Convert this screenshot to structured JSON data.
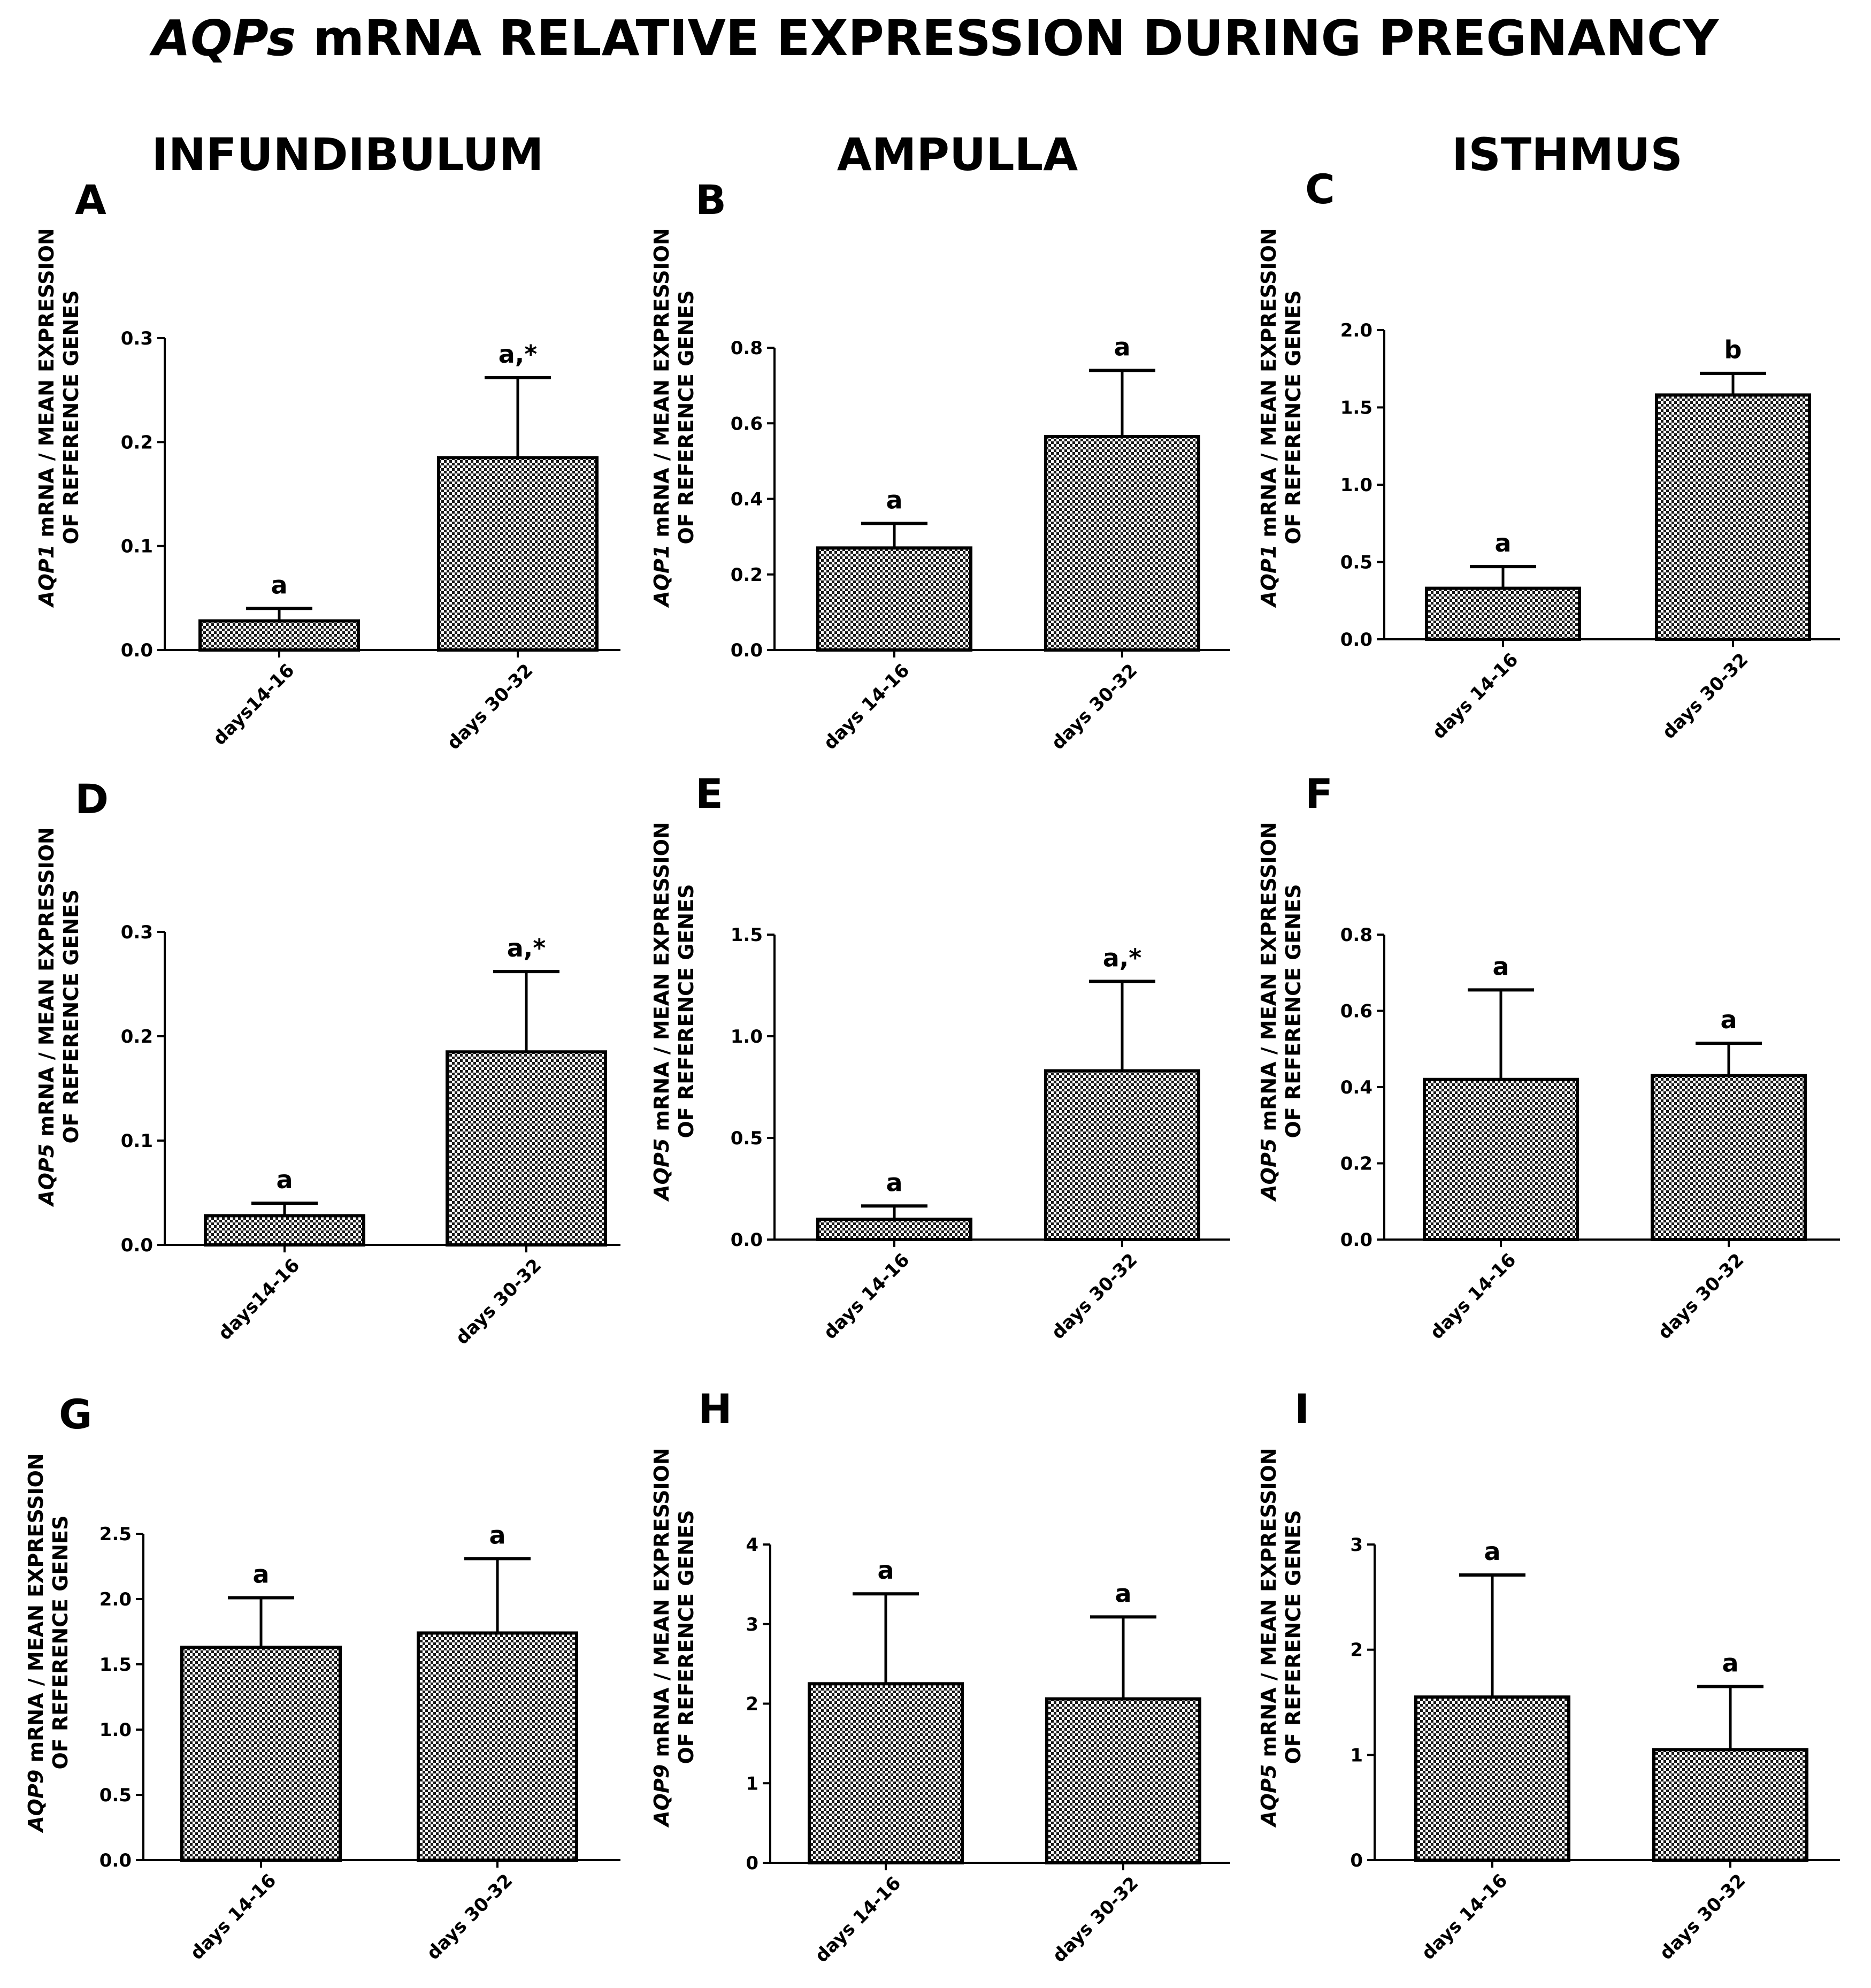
{
  "title": {
    "prefix": "AQPs",
    "rest": " mRNA RELATIVE EXPRESSION DURING PREGNANCY"
  },
  "columns": [
    "INFUNDIBULUM",
    "AMPULLA",
    "ISTHMUS"
  ],
  "colors": {
    "bar_fill": "#8a8a8a",
    "axis": "#000000"
  },
  "chart_data": [
    {
      "panel": "A",
      "type": "bar",
      "gene": "AQP1",
      "ylabel_rest": " mRNA / MEAN EXPRESSION",
      "ylabel_line2": "OF REFERENCE GENES",
      "categories": [
        "days14-16",
        "days 30-32"
      ],
      "values": [
        0.028,
        0.185
      ],
      "errors": [
        0.012,
        0.077
      ],
      "labels": [
        "a",
        "a,*"
      ],
      "ylim": [
        0,
        0.3
      ],
      "yticks": [
        "0.0",
        "0.1",
        "0.2",
        "0.3"
      ]
    },
    {
      "panel": "B",
      "type": "bar",
      "gene": "AQP1",
      "ylabel_rest": " mRNA / MEAN EXPRESSION",
      "ylabel_line2": "OF REFERENCE GENES",
      "categories": [
        "days 14-16",
        "days 30-32"
      ],
      "values": [
        0.27,
        0.565
      ],
      "errors": [
        0.065,
        0.175
      ],
      "labels": [
        "a",
        "a"
      ],
      "ylim": [
        0,
        0.8
      ],
      "yticks": [
        "0.0",
        "0.2",
        "0.4",
        "0.6",
        "0.8"
      ]
    },
    {
      "panel": "C",
      "type": "bar",
      "gene": "AQP1",
      "ylabel_rest": " mRNA / MEAN EXPRESSION",
      "ylabel_line2": "OF REFERENCE GENES",
      "categories": [
        "days 14-16",
        "days 30-32"
      ],
      "values": [
        0.33,
        1.58
      ],
      "errors": [
        0.14,
        0.14
      ],
      "labels": [
        "a",
        "b"
      ],
      "ylim": [
        0,
        2.0
      ],
      "yticks": [
        "0.0",
        "0.5",
        "1.0",
        "1.5",
        "2.0"
      ]
    },
    {
      "panel": "D",
      "type": "bar",
      "gene": "AQP5",
      "ylabel_rest": " mRNA / MEAN EXPRESSION",
      "ylabel_line2": "OF REFERENCE GENES",
      "categories": [
        "days14-16",
        "days 30-32"
      ],
      "values": [
        0.028,
        0.185
      ],
      "errors": [
        0.012,
        0.077
      ],
      "labels": [
        "a",
        "a,*"
      ],
      "ylim": [
        0,
        0.3
      ],
      "yticks": [
        "0.0",
        "0.1",
        "0.2",
        "0.3"
      ]
    },
    {
      "panel": "E",
      "type": "bar",
      "gene": "AQP5",
      "ylabel_rest": " mRNA / MEAN EXPRESSION",
      "ylabel_line2": "OF REFERENCE GENES",
      "categories": [
        "days 14-16",
        "days 30-32"
      ],
      "values": [
        0.1,
        0.83
      ],
      "errors": [
        0.065,
        0.44
      ],
      "labels": [
        "a",
        "a,*"
      ],
      "ylim": [
        0,
        1.5
      ],
      "yticks": [
        "0.0",
        "0.5",
        "1.0",
        "1.5"
      ]
    },
    {
      "panel": "F",
      "type": "bar",
      "gene": "AQP5",
      "ylabel_rest": " mRNA / MEAN EXPRESSION",
      "ylabel_line2": "OF REFERENCE GENES",
      "categories": [
        "days 14-16",
        "days 30-32"
      ],
      "values": [
        0.42,
        0.43
      ],
      "errors": [
        0.235,
        0.085
      ],
      "labels": [
        "a",
        "a"
      ],
      "ylim": [
        0,
        0.8
      ],
      "yticks": [
        "0.0",
        "0.2",
        "0.4",
        "0.6",
        "0.8"
      ]
    },
    {
      "panel": "G",
      "type": "bar",
      "gene": "AQP9",
      "ylabel_rest": " mRNA / MEAN EXPRESSION",
      "ylabel_line2": "OF REFERENCE GENES",
      "categories": [
        "days 14-16",
        "days 30-32"
      ],
      "values": [
        1.63,
        1.74
      ],
      "errors": [
        0.38,
        0.57
      ],
      "labels": [
        "a",
        "a"
      ],
      "ylim": [
        0,
        2.5
      ],
      "yticks": [
        "0.0",
        "0.5",
        "1.0",
        "1.5",
        "2.0",
        "2.5"
      ]
    },
    {
      "panel": "H",
      "type": "bar",
      "gene": "AQP9",
      "ylabel_rest": " mRNA / MEAN EXPRESSION",
      "ylabel_line2": "OF REFERENCE GENES",
      "categories": [
        "days 14-16",
        "days 30-32"
      ],
      "values": [
        2.25,
        2.06
      ],
      "errors": [
        1.13,
        1.03
      ],
      "labels": [
        "a",
        "a"
      ],
      "ylim": [
        0,
        4
      ],
      "yticks": [
        "0",
        "1",
        "2",
        "3",
        "4"
      ]
    },
    {
      "panel": "I",
      "type": "bar",
      "gene": "AQP5",
      "ylabel_rest": " mRNA / MEAN EXPRESSION",
      "ylabel_line2": "OF REFERENCE GENES",
      "categories": [
        "days 14-16",
        "days 30-32"
      ],
      "values": [
        1.55,
        1.05
      ],
      "errors": [
        1.16,
        0.6
      ],
      "labels": [
        "a",
        "a"
      ],
      "ylim": [
        0,
        3
      ],
      "yticks": [
        "0",
        "1",
        "2",
        "3"
      ]
    }
  ]
}
